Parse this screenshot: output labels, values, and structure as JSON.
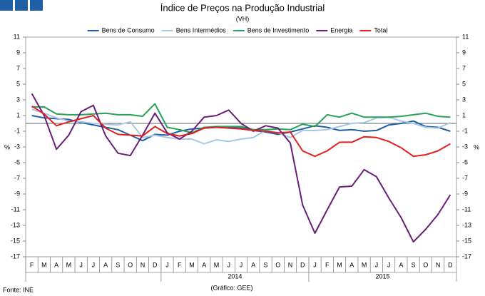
{
  "chart_data": {
    "type": "line",
    "title": "Índice de Preços na Produção Industrial",
    "subtitle": "(VH)",
    "y_label": "%",
    "source": "Fonte: INE",
    "credit": "(Gráfico: GEE)",
    "categories": [
      "F",
      "M",
      "A",
      "M",
      "J",
      "J",
      "A",
      "S",
      "O",
      "N",
      "D",
      "J",
      "F",
      "M",
      "A",
      "M",
      "J",
      "J",
      "A",
      "S",
      "O",
      "N",
      "D",
      "J",
      "F",
      "M",
      "A",
      "M",
      "J",
      "J",
      "A",
      "S",
      "O",
      "N",
      "D"
    ],
    "x_groups": [
      {
        "label": null,
        "size": 11
      },
      {
        "label": "2014",
        "size": 12
      },
      {
        "label": "2015",
        "size": 12
      }
    ],
    "series": [
      {
        "name": "Bens de Consumo",
        "color": "#1f5fa8",
        "values": [
          1.0,
          0.7,
          0.6,
          0.5,
          0.1,
          -0.2,
          -0.5,
          -0.8,
          -1.5,
          -2.2,
          -1.4,
          -1.5,
          -1.0,
          -0.7,
          -0.6,
          -0.5,
          -0.5,
          -0.6,
          -0.9,
          -1.1,
          -1.4,
          -1.1,
          -0.7,
          -0.3,
          -0.5,
          -0.9,
          -0.8,
          -1.0,
          -0.9,
          -0.2,
          0.0,
          0.3,
          -0.4,
          -0.5,
          -1.0
        ]
      },
      {
        "name": "Bens Intermédios",
        "color": "#a6c8e6",
        "values": [
          1.8,
          1.3,
          0.7,
          0.3,
          0.2,
          0.0,
          -0.1,
          -0.2,
          0.2,
          -1.8,
          -1.5,
          -1.8,
          -2.0,
          -2.0,
          -2.6,
          -2.1,
          -2.3,
          -2.0,
          -1.8,
          -0.9,
          -1.2,
          -1.8,
          -0.9,
          -0.9,
          -0.8,
          -0.4,
          0.0,
          0.1,
          0.7,
          0.8,
          0.3,
          0.0,
          -0.5,
          -0.6,
          0.1
        ]
      },
      {
        "name": "Bens de Investimento",
        "color": "#2aa05a",
        "values": [
          2.1,
          2.1,
          1.2,
          1.1,
          1.1,
          1.2,
          1.3,
          1.1,
          1.1,
          0.9,
          2.5,
          -0.5,
          -0.8,
          -1.2,
          -0.5,
          -0.4,
          -0.4,
          -0.4,
          -0.8,
          -0.8,
          -0.7,
          -0.8,
          -0.1,
          -0.4,
          1.1,
          0.8,
          1.3,
          0.8,
          0.8,
          0.8,
          0.9,
          1.1,
          1.3,
          0.9,
          0.8
        ]
      },
      {
        "name": "Energia",
        "color": "#6a1e7a",
        "values": [
          3.8,
          1.0,
          -3.3,
          -1.5,
          1.5,
          2.3,
          -1.6,
          -3.8,
          -4.1,
          -1.5,
          1.3,
          -1.2,
          -2.0,
          -1.0,
          0.8,
          1.0,
          1.7,
          0.0,
          -1.0,
          -0.3,
          -0.6,
          -2.5,
          -10.4,
          -14.0,
          -11.0,
          -8.1,
          -8.0,
          -5.9,
          -6.8,
          -9.5,
          -12.0,
          -15.1,
          -13.5,
          -11.6,
          -9.1
        ]
      },
      {
        "name": "Total",
        "color": "#e02020",
        "values": [
          2.2,
          1.2,
          -0.3,
          0.2,
          0.6,
          1.0,
          -0.6,
          -1.4,
          -1.5,
          -1.6,
          -0.4,
          -1.3,
          -1.6,
          -1.3,
          -0.6,
          -0.5,
          -0.6,
          -0.7,
          -0.9,
          -1.0,
          -1.2,
          -1.1,
          -3.5,
          -4.2,
          -3.5,
          -2.4,
          -2.4,
          -1.7,
          -1.8,
          -2.3,
          -3.1,
          -4.2,
          -4.0,
          -3.5,
          -2.6
        ]
      }
    ],
    "ylim": [
      -17,
      11
    ],
    "yticks": [
      11,
      9,
      7,
      5,
      3,
      1,
      -1,
      -3,
      -5,
      -7,
      -9,
      -11,
      -13,
      -15,
      -17
    ],
    "grid": false,
    "legend": "top"
  }
}
